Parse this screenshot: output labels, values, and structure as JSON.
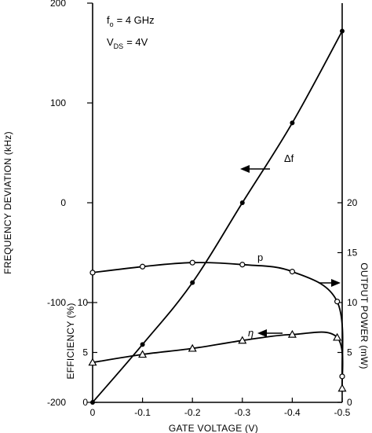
{
  "chart_data": {
    "type": "line",
    "annotations": {
      "f0": "f",
      "f0_sub": "o",
      "f0_value": "= 4 GHz",
      "vds": "V",
      "vds_sub": "DS",
      "vds_value": "= 4V"
    },
    "x": {
      "label": "GATE VOLTAGE (V)",
      "range": [
        0,
        -0.5
      ],
      "ticks": [
        0,
        -0.1,
        -0.2,
        -0.3,
        -0.4,
        -0.5
      ],
      "tick_labels": [
        "0",
        "-0.1",
        "-0.2",
        "-0.3",
        "-0.4",
        "-0.5"
      ]
    },
    "y_left": {
      "label": "FREQUENCY DEVIATION (kHz)",
      "range": [
        -200,
        200
      ],
      "ticks": [
        -200,
        -100,
        0,
        100,
        200
      ],
      "tick_labels": [
        "-200",
        "-100",
        "0",
        "100",
        "200"
      ]
    },
    "y_left_inner": {
      "label": "EFFICIENCY (%)",
      "range": [
        0,
        10
      ],
      "ticks": [
        0,
        5,
        10
      ],
      "tick_labels": [
        "0",
        "5",
        "10"
      ]
    },
    "y_right": {
      "label": "OUTPUT POWER (mW)",
      "range": [
        0,
        20
      ],
      "ticks": [
        0,
        5,
        10,
        15,
        20
      ],
      "tick_labels": [
        "0",
        "5",
        "10",
        "15",
        "20"
      ]
    },
    "series": [
      {
        "name": "Δf",
        "axis": "y_left",
        "marker": "dot",
        "x": [
          0,
          -0.1,
          -0.2,
          -0.3,
          -0.4,
          -0.5
        ],
        "y": [
          -200,
          -142,
          -80,
          0,
          80,
          172
        ]
      },
      {
        "name": "p",
        "axis": "y_right",
        "marker": "circle",
        "x": [
          0,
          -0.1,
          -0.2,
          -0.3,
          -0.4,
          -0.49,
          -0.5
        ],
        "y": [
          13,
          13.6,
          14.0,
          13.8,
          13.1,
          10.1,
          2.6
        ]
      },
      {
        "name": "η",
        "axis": "y_left_inner",
        "marker": "triangle",
        "x": [
          0,
          -0.1,
          -0.2,
          -0.3,
          -0.4,
          -0.49,
          -0.5
        ],
        "y": [
          4.0,
          4.8,
          5.4,
          6.2,
          6.8,
          6.5,
          1.4
        ]
      }
    ],
    "grid": false
  }
}
